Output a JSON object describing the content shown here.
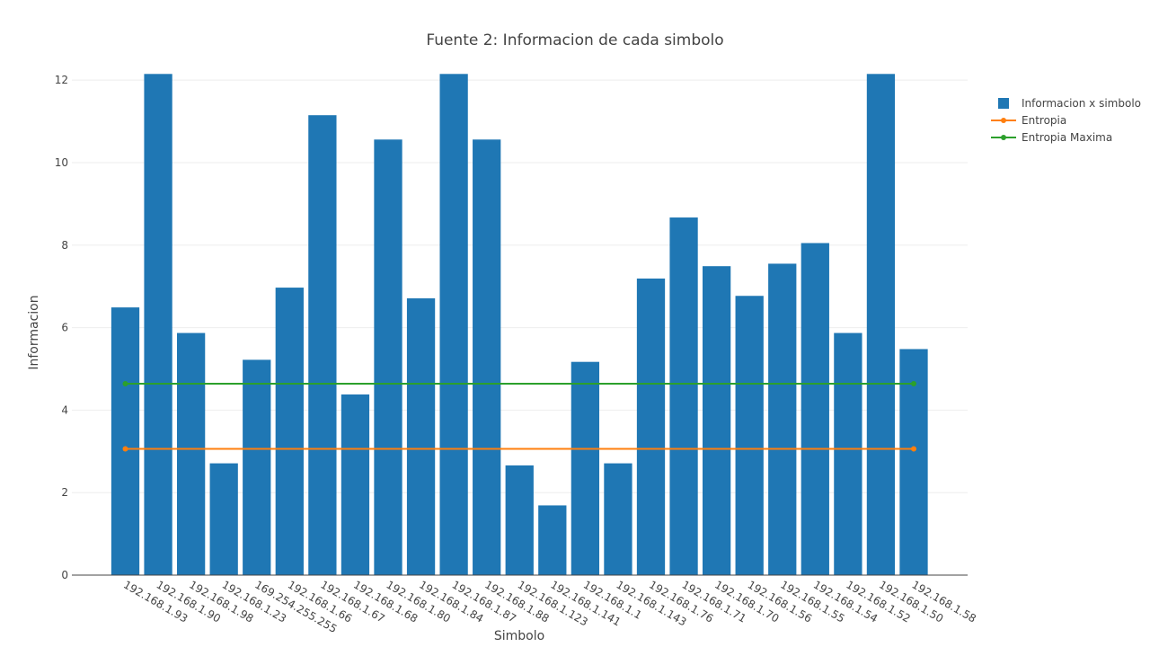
{
  "chart_data": {
    "type": "bar",
    "title": "Fuente 2: Informacion de cada simbolo",
    "xlabel": "Simbolo",
    "ylabel": "Informacion",
    "ylim": [
      0,
      12.2
    ],
    "yticks": [
      0,
      2,
      4,
      6,
      8,
      10,
      12
    ],
    "grid": true,
    "legend_position": "top-right",
    "categories": [
      "192.168.1.93",
      "192.168.1.90",
      "192.168.1.98",
      "192.168.1.23",
      "169.254.255.255",
      "192.168.1.66",
      "192.168.1.67",
      "192.168.1.68",
      "192.168.1.80",
      "192.168.1.84",
      "192.168.1.87",
      "192.168.1.88",
      "192.168.1.123",
      "192.168.1.141",
      "192.168.1.1",
      "192.168.1.143",
      "192.168.1.76",
      "192.168.1.71",
      "192.168.1.70",
      "192.168.1.56",
      "192.168.1.55",
      "192.168.1.54",
      "192.168.1.52",
      "192.168.1.50",
      "192.168.1.58"
    ],
    "series": [
      {
        "name": "Informacion x simbolo",
        "kind": "bar",
        "color": "#1f77b4",
        "values": [
          6.49,
          12.15,
          5.87,
          2.71,
          5.22,
          6.97,
          11.15,
          4.38,
          10.56,
          6.71,
          12.15,
          10.56,
          2.66,
          1.69,
          5.17,
          2.71,
          7.19,
          8.67,
          7.49,
          6.77,
          7.55,
          8.05,
          5.87,
          12.15,
          5.48
        ]
      },
      {
        "name": "Entropia",
        "kind": "line",
        "color": "#ff7f0e",
        "x": [
          "192.168.1.93",
          "192.168.1.58"
        ],
        "values": [
          3.06,
          3.06
        ]
      },
      {
        "name": "Entropia Maxima",
        "kind": "line",
        "color": "#2ca02c",
        "x": [
          "192.168.1.93",
          "192.168.1.58"
        ],
        "values": [
          4.64,
          4.64
        ]
      }
    ]
  }
}
